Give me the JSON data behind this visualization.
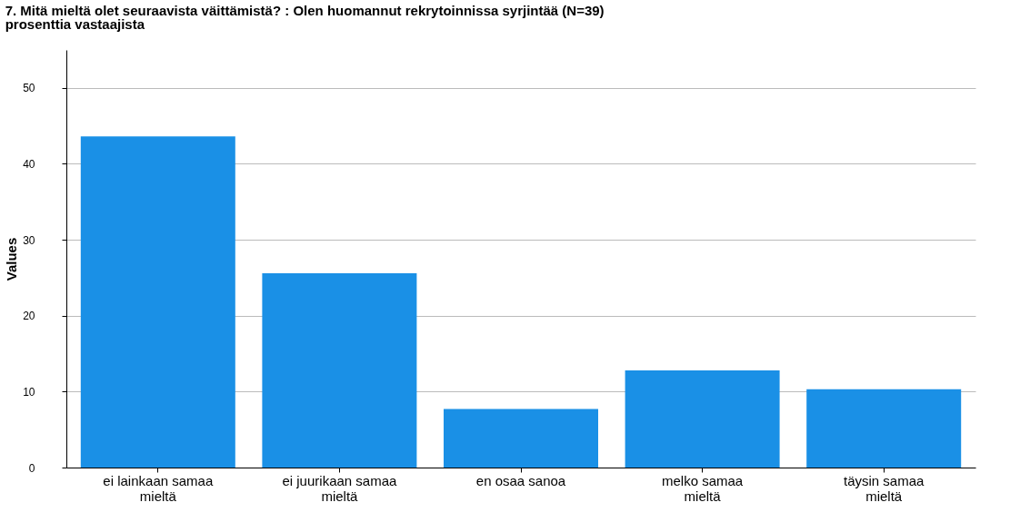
{
  "chart_data": {
    "type": "bar",
    "title": "7. Mitä mieltä olet seuraavista väittämistä? : Olen huomannut rekrytoinnissa syrjintää (N=39)",
    "subtitle": "prosenttia vastaajista",
    "ylabel": "Values",
    "categories": [
      "ei lainkaan samaa mieltä",
      "ei juurikaan samaa mieltä",
      "en osaa sanoa",
      "melko samaa mieltä",
      "täysin samaa mieltä"
    ],
    "values": [
      43.6,
      25.6,
      7.7,
      12.8,
      10.3
    ],
    "color": "#1a90e6",
    "ylim": [
      0,
      55
    ],
    "yticks": [
      0,
      10,
      20,
      30,
      40,
      50
    ],
    "grid": "y"
  }
}
